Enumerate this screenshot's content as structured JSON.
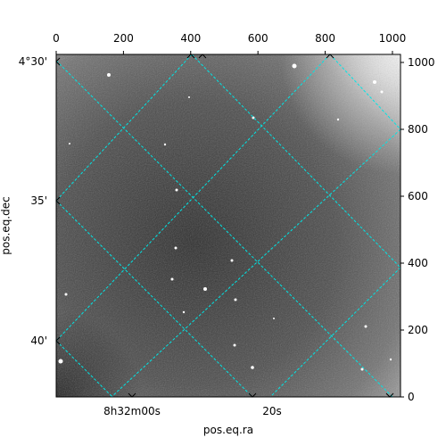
{
  "chart_data": {
    "type": "image",
    "xlabel": "pos.eq.ra",
    "ylabel": "pos.eq.dec",
    "xlim": [
      0,
      1024
    ],
    "xticks": [
      0,
      200,
      400,
      600,
      800,
      1000
    ],
    "ylim": [
      0,
      1024
    ],
    "yticks": [
      0,
      200,
      400,
      600,
      800,
      1000
    ],
    "ra_ticks": [
      "8h32m00s",
      "20s"
    ],
    "dec_ticks": [
      "4°30'",
      "35'",
      "40'"
    ],
    "grid_color": "#00e5e5"
  }
}
